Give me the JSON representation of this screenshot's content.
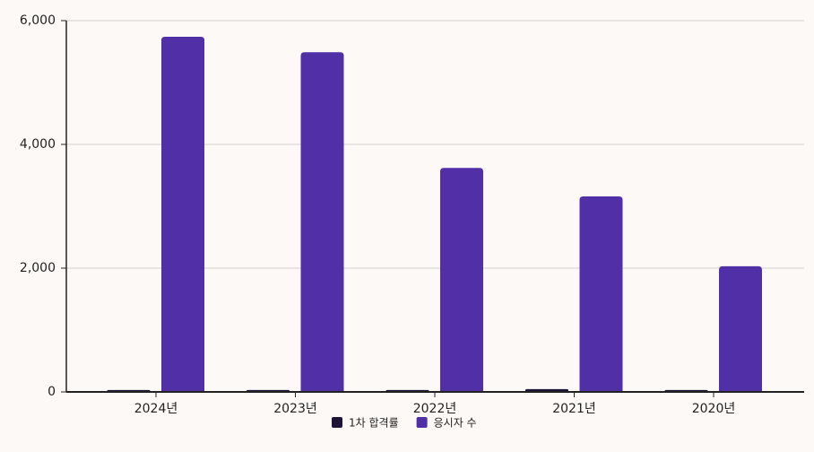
{
  "chart_data": {
    "type": "bar",
    "categories": [
      "2024년",
      "2023년",
      "2022년",
      "2021년",
      "2020년"
    ],
    "series": [
      {
        "name": "1차 합격률",
        "color": "#1e1438",
        "values": [
          30,
          30,
          30,
          45,
          30
        ]
      },
      {
        "name": "응시자 수",
        "color": "#512fa6",
        "values": [
          5740,
          5490,
          3620,
          3160,
          2030
        ]
      }
    ],
    "ylim": [
      0,
      6000
    ],
    "yticks": [
      0,
      {
        "value": 2000,
        "label": "2,000"
      },
      {
        "value": 4000,
        "label": "4,000"
      },
      {
        "value": 6000,
        "label": "6,000"
      }
    ],
    "grid": true,
    "legend": "bottom"
  }
}
